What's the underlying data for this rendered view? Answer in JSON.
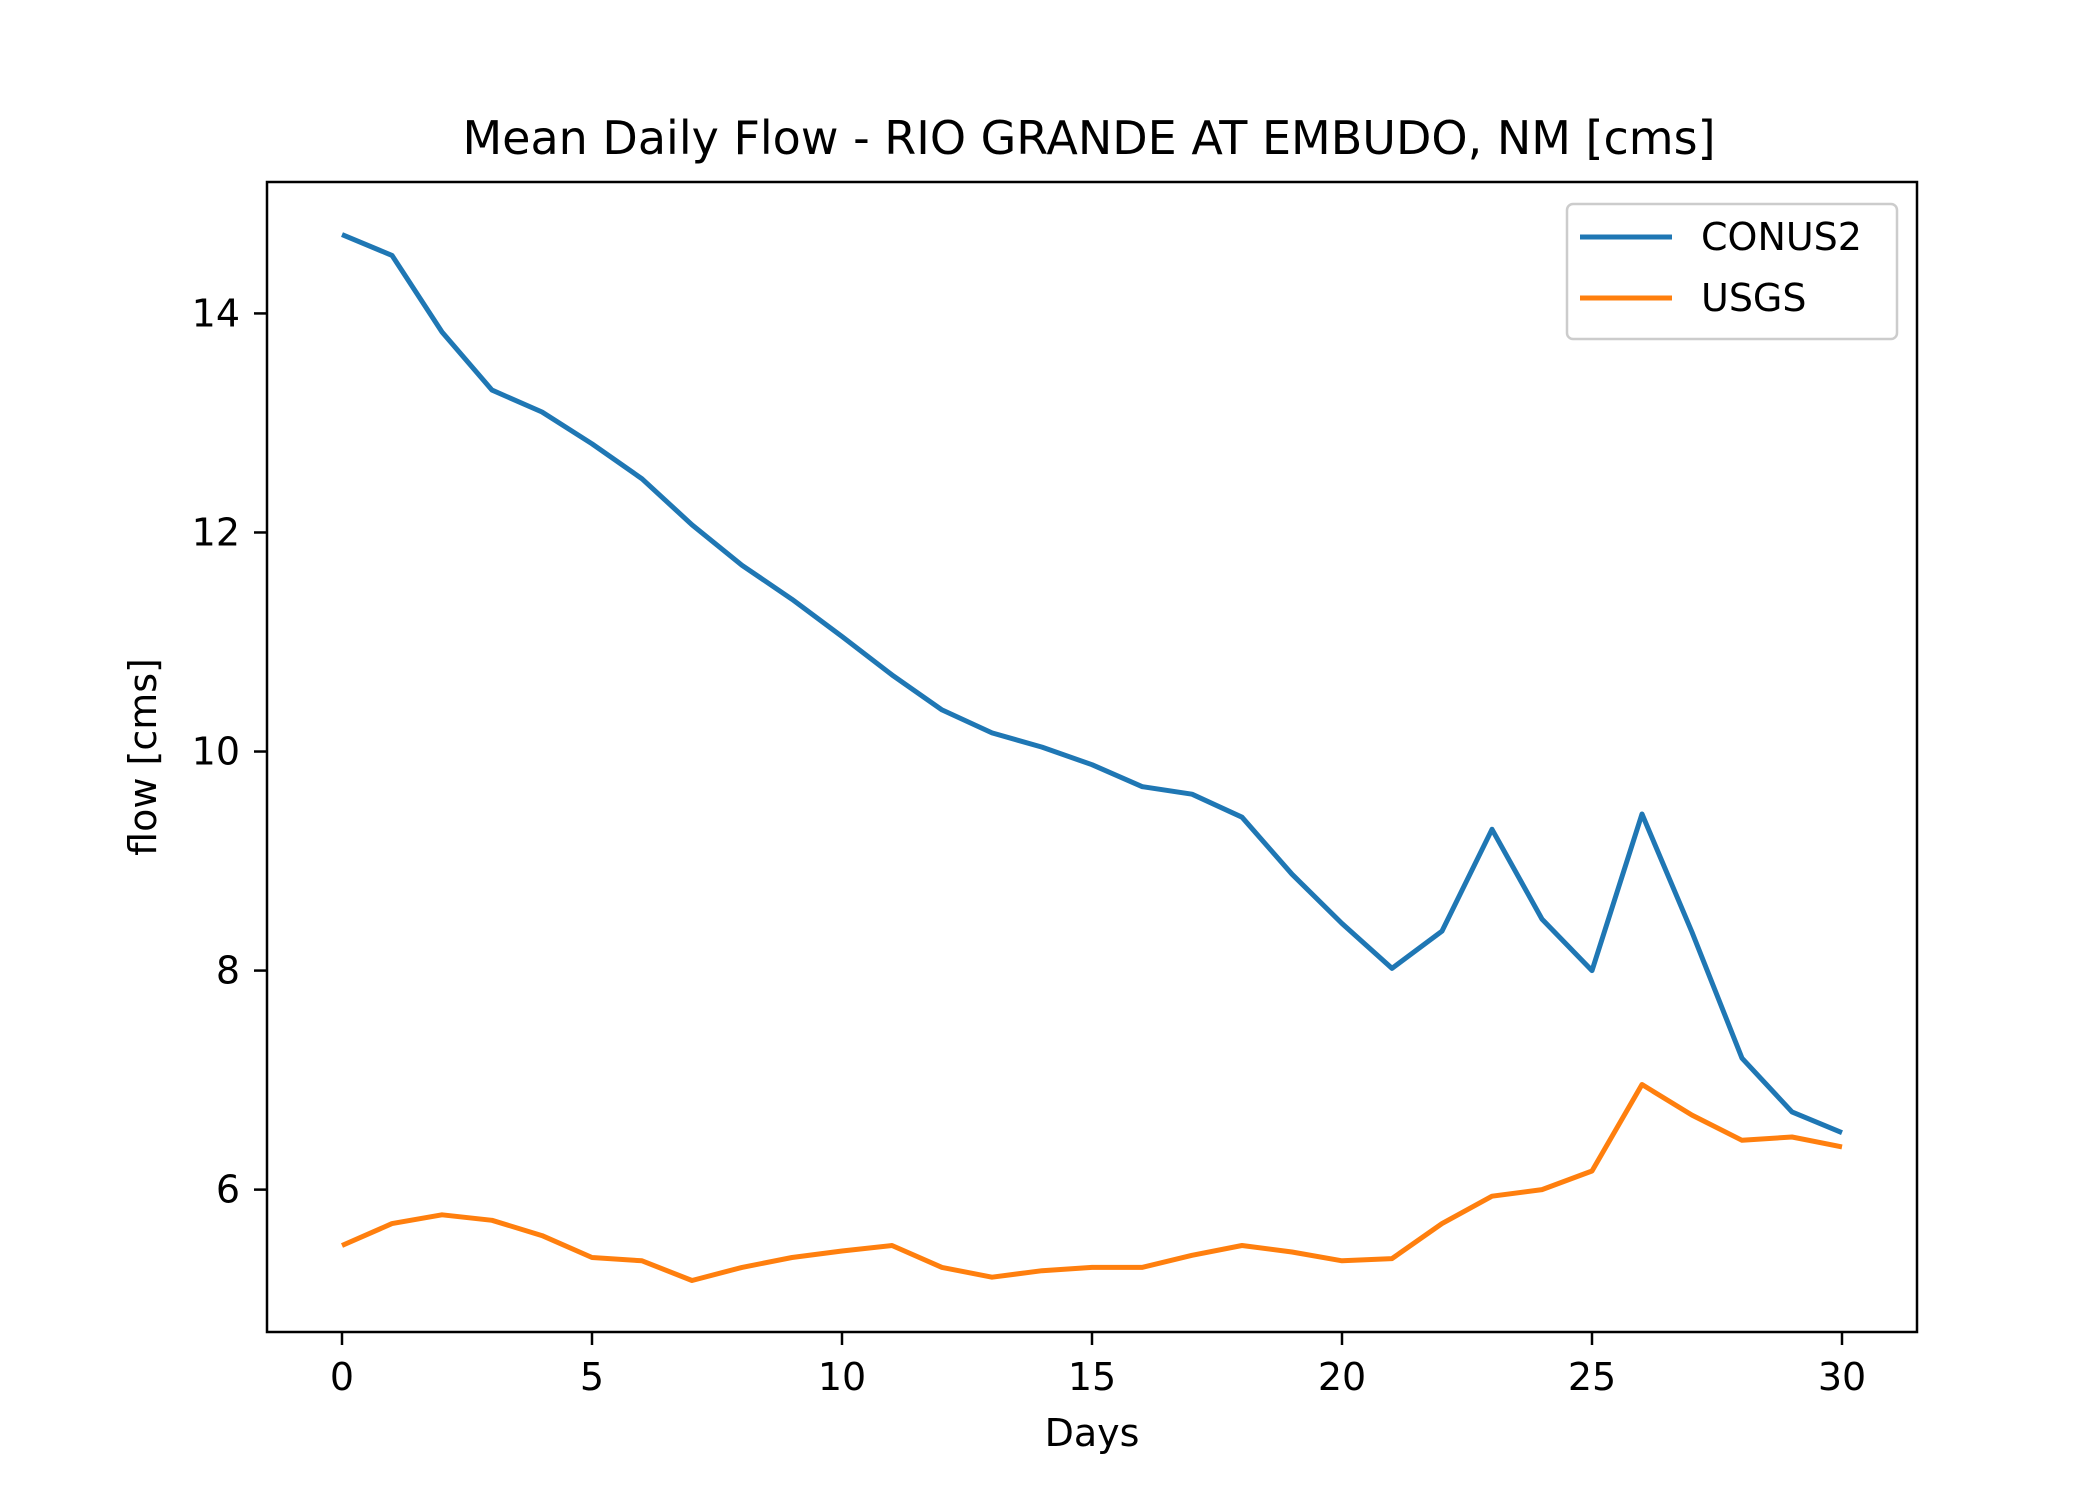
{
  "chart_data": {
    "type": "line",
    "title": "Mean Daily Flow - RIO GRANDE AT EMBUDO, NM [cms]",
    "xlabel": "Days",
    "ylabel": "flow [cms]",
    "xlim": [
      -1.5,
      31.5
    ],
    "ylim": [
      4.7,
      15.2
    ],
    "xticks": [
      0,
      5,
      10,
      15,
      20,
      25,
      30
    ],
    "yticks": [
      6,
      8,
      10,
      12,
      14
    ],
    "grid": false,
    "legend_position": "top-right",
    "x": [
      0,
      1,
      2,
      3,
      4,
      5,
      6,
      7,
      8,
      9,
      10,
      11,
      12,
      13,
      14,
      15,
      16,
      17,
      18,
      19,
      20,
      21,
      22,
      23,
      24,
      25,
      26,
      27,
      28,
      29,
      30
    ],
    "series": [
      {
        "name": "CONUS2",
        "color": "#1f77b4",
        "values": [
          14.72,
          14.53,
          13.83,
          13.3,
          13.1,
          12.81,
          12.49,
          12.07,
          11.7,
          11.39,
          11.05,
          10.7,
          10.38,
          10.17,
          10.04,
          9.88,
          9.68,
          9.61,
          9.4,
          8.88,
          8.43,
          8.02,
          8.36,
          9.29,
          8.47,
          8.0,
          9.43,
          8.35,
          7.2,
          6.71,
          6.52
        ]
      },
      {
        "name": "USGS",
        "color": "#ff7f0e",
        "values": [
          5.49,
          5.69,
          5.77,
          5.72,
          5.58,
          5.38,
          5.35,
          5.17,
          5.29,
          5.38,
          5.44,
          5.49,
          5.29,
          5.2,
          5.26,
          5.29,
          5.29,
          5.4,
          5.49,
          5.43,
          5.35,
          5.37,
          5.69,
          5.94,
          6.0,
          6.17,
          6.96,
          6.68,
          6.45,
          6.48,
          6.39
        ]
      }
    ]
  }
}
